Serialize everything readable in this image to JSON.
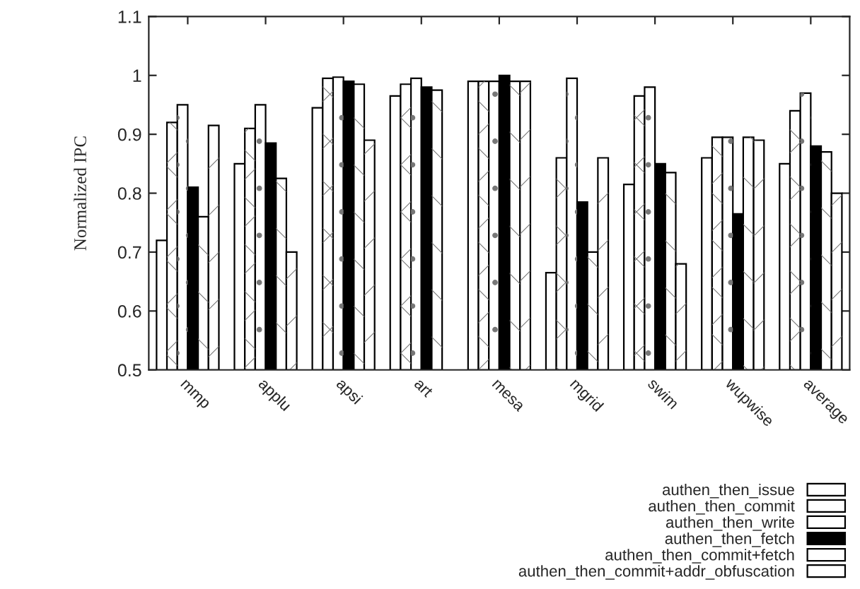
{
  "chart_data": {
    "type": "bar",
    "ylabel": "Normalized IPC",
    "categories": [
      "mmp",
      "applu",
      "apsi",
      "art",
      "mesa",
      "mgrid",
      "swim",
      "wupwise",
      "average"
    ],
    "series": [
      {
        "name": "authen_then_issue",
        "color": "#ffffff",
        "values": [
          0.72,
          0.85,
          0.945,
          0.965,
          0.99,
          0.665,
          0.815,
          0.86,
          0.85
        ]
      },
      {
        "name": "authen_then_commit",
        "color": "#ffffff",
        "values": [
          0.92,
          0.91,
          0.995,
          0.985,
          0.99,
          0.86,
          0.965,
          0.895,
          0.94
        ]
      },
      {
        "name": "authen_then_write",
        "color": "#ffffff",
        "values": [
          0.95,
          0.95,
          0.997,
          0.995,
          0.99,
          0.995,
          0.98,
          0.895,
          0.97
        ]
      },
      {
        "name": "authen_then_fetch",
        "color": "#000000",
        "values": [
          0.81,
          0.885,
          0.99,
          0.98,
          1.0,
          0.785,
          0.85,
          0.765,
          0.88
        ]
      },
      {
        "name": "authen_then_commit+fetch",
        "color": "#ffffff",
        "values": [
          0.76,
          0.825,
          0.985,
          0.975,
          0.99,
          0.7,
          0.835,
          0.895,
          0.87
        ]
      },
      {
        "name": "authen_then_commit+addr_obfuscation",
        "color": "#ffffff",
        "values": [
          0.915,
          0.7,
          0.89,
          null,
          0.99,
          0.86,
          0.68,
          0.89,
          0.8
        ]
      }
    ],
    "ylim": [
      0.5,
      1.1
    ],
    "yticks": [
      0.5,
      0.6,
      0.7,
      0.8,
      0.9,
      1,
      1.1
    ],
    "grid": false,
    "legend": "bottom right"
  }
}
